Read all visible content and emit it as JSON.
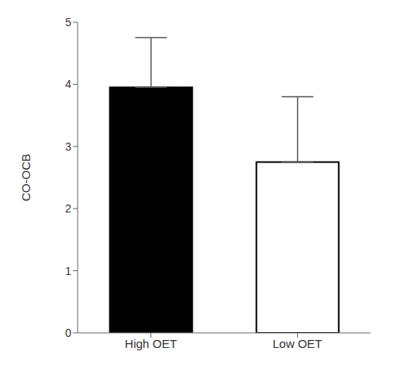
{
  "chart_data": {
    "type": "bar",
    "categories": [
      "High OET",
      "Low OET"
    ],
    "values": [
      3.95,
      2.75
    ],
    "errors_up": [
      0.8,
      1.05
    ],
    "colors": [
      "#000000",
      "#ffffff"
    ],
    "ylabel": "CO-OCB",
    "ylim": [
      0,
      5
    ],
    "yticks": [
      0,
      1,
      2,
      3,
      4,
      5
    ],
    "grid": false
  }
}
